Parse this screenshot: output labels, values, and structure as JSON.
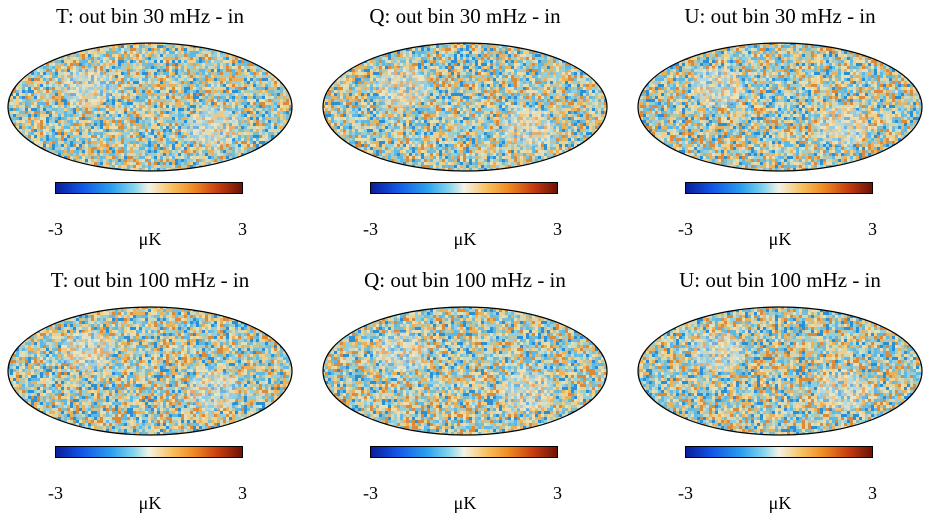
{
  "maps": [
    {
      "title": "T: out bin 30 mHz - in",
      "colorbar": {
        "min": "-3",
        "max": "3",
        "unit": "μK"
      }
    },
    {
      "title": "Q: out bin 30 mHz - in",
      "colorbar": {
        "min": "-3",
        "max": "3",
        "unit": "μK"
      }
    },
    {
      "title": "U: out bin 30 mHz - in",
      "colorbar": {
        "min": "-3",
        "max": "3",
        "unit": "μK"
      }
    },
    {
      "title": "T: out bin 100 mHz - in",
      "colorbar": {
        "min": "-3",
        "max": "3",
        "unit": "μK"
      }
    },
    {
      "title": "Q: out bin 100 mHz - in",
      "colorbar": {
        "min": "-3",
        "max": "3",
        "unit": "μK"
      }
    },
    {
      "title": "U: out bin 100 mHz - in",
      "colorbar": {
        "min": "-3",
        "max": "3",
        "unit": "μK"
      }
    }
  ],
  "colors": {
    "cmap_low": "#0a1e9c",
    "cmap_mid": "#f4f2e6",
    "cmap_high": "#6e1206",
    "outline": "#000000"
  }
}
